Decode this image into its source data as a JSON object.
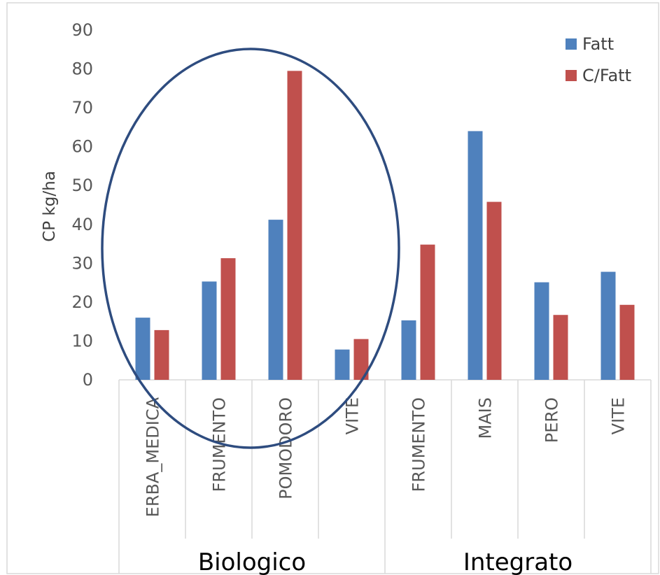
{
  "chart_data": {
    "type": "bar",
    "title": "",
    "ylabel": "CP kg/ha",
    "xlabel": "",
    "ylim": [
      0,
      90
    ],
    "yticks": [
      0,
      10,
      20,
      30,
      40,
      50,
      60,
      70,
      80,
      90
    ],
    "grid": false,
    "legend_position": "top-right",
    "groups": [
      {
        "label": "Biologico",
        "categories": [
          "ERBA_MEDICA",
          "FRUMENTO",
          "POMODORO",
          "VITE"
        ]
      },
      {
        "label": "Integrato",
        "categories": [
          "FRUMENTO",
          "MAIS",
          "PERO",
          "VITE"
        ]
      }
    ],
    "categories": [
      "ERBA_MEDICA",
      "FRUMENTO",
      "POMODORO",
      "VITE",
      "FRUMENTO",
      "MAIS",
      "PERO",
      "VITE"
    ],
    "series": [
      {
        "name": "Fatt",
        "color": "#4f81bd",
        "values": [
          16,
          25.3,
          41.2,
          7.8,
          15.3,
          64,
          25.1,
          27.8
        ]
      },
      {
        "name": "C/Fatt",
        "color": "#c0504d",
        "values": [
          12.8,
          31.3,
          79.5,
          10.5,
          34.8,
          45.8,
          16.7,
          19.3
        ]
      }
    ],
    "annotation": {
      "shape": "ellipse",
      "color": "#2e4c7f",
      "encloses_group": "Biologico"
    }
  }
}
